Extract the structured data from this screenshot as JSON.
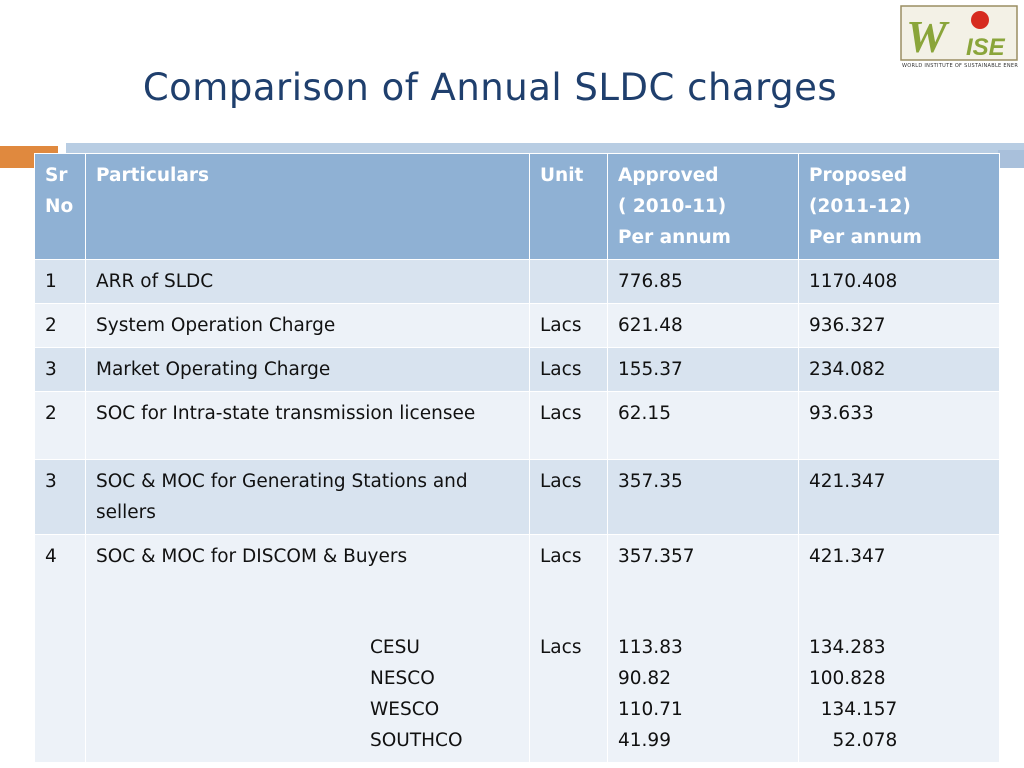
{
  "page": {
    "title": "Comparison of Annual SLDC charges"
  },
  "logo": {
    "text": "WISE",
    "caption": "WORLD INSTITUTE OF SUSTAINABLE ENERGY",
    "colors": {
      "green": "#8aa53a",
      "red": "#d62b1f",
      "dark": "#5a4a2f"
    }
  },
  "colors": {
    "title": "#1f3f6d",
    "header_bg": "#8fb1d4",
    "row_odd": "#d8e3ef",
    "row_even": "#edf2f8",
    "accent_orange": "#e0893e"
  },
  "table": {
    "headers": [
      "Sr\nNo",
      "Particulars",
      "Unit",
      "Approved\n( 2010-11)\nPer annum",
      "Proposed\n(2011-12)\nPer annum"
    ],
    "rows": [
      {
        "sr": "1",
        "particular": "ARR of SLDC",
        "unit": "",
        "approved": "776.85",
        "proposed": "1170.408"
      },
      {
        "sr": "2",
        "particular": "System Operation Charge",
        "unit": "Lacs",
        "approved": "621.48",
        "proposed": "936.327"
      },
      {
        "sr": "3",
        "particular": "Market Operating Charge",
        "unit": "Lacs",
        "approved": "155.37",
        "proposed": "234.082"
      },
      {
        "sr": "2",
        "particular": "SOC for Intra-state transmission licensee",
        "unit": "Lacs",
        "approved": "62.15",
        "proposed": "93.633"
      },
      {
        "sr": "3",
        "particular": "SOC & MOC for Generating Stations and sellers",
        "unit": "Lacs",
        "approved": "357.35",
        "proposed": "421.347"
      },
      {
        "sr": "4",
        "particular": "SOC & MOC for DISCOM & Buyers",
        "unit": "Lacs",
        "approved": "357.357",
        "proposed": "421.347",
        "sub_unit": "Lacs",
        "sub_labels": "CESU\nNESCO\nWESCO\nSOUTHCO",
        "sub_approved": "113.83\n90.82\n110.71\n41.99",
        "sub_proposed": "134.283\n100.828\n  134.157\n    52.078"
      }
    ]
  }
}
